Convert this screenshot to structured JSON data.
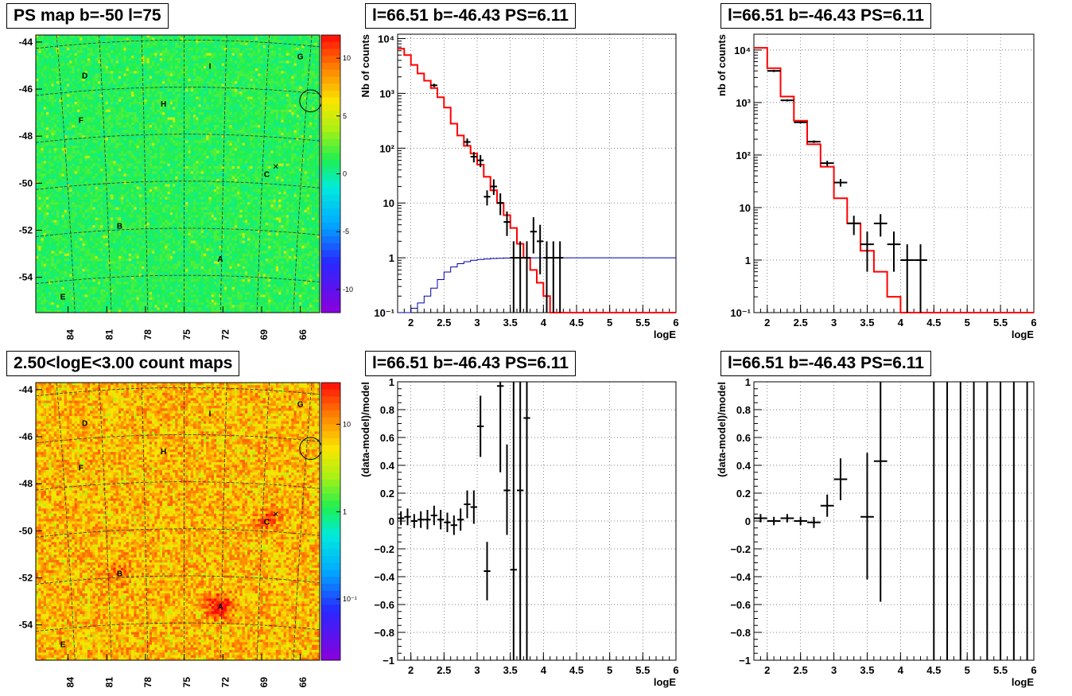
{
  "chart_data": [
    {
      "id": "ps_map",
      "type": "heatmap",
      "title": "PS map b=-50 l=75",
      "colormap": "rainbow",
      "dominant_color": "#22ee55",
      "zlim": [
        -12,
        12
      ],
      "z_ticks": [
        "10",
        "5",
        "0",
        "-5",
        "-10"
      ],
      "z_tick_values": [
        10,
        5,
        0,
        -5,
        -10
      ],
      "x_ticks": [
        "84",
        "81",
        "78",
        "75",
        "72",
        "69",
        "66"
      ],
      "x_tick_values": [
        84,
        81,
        78,
        75,
        72,
        69,
        66
      ],
      "xlim": [
        86.5,
        64.5
      ],
      "y_ticks": [
        "-44",
        "-46",
        "-48",
        "-50",
        "-52",
        "-54"
      ],
      "y_tick_values": [
        -44,
        -46,
        -48,
        -50,
        -52,
        -54
      ],
      "ylim": [
        -55.5,
        -43.7
      ],
      "sources": [
        {
          "label": "A",
          "l": 72.2,
          "b": -53.2
        },
        {
          "label": "B",
          "l": 80.0,
          "b": -51.8
        },
        {
          "label": "C",
          "l": 68.6,
          "b": -49.6
        },
        {
          "label": "D",
          "l": 82.7,
          "b": -45.4
        },
        {
          "label": "E",
          "l": 84.4,
          "b": -54.8
        },
        {
          "label": "F",
          "l": 83.0,
          "b": -47.3
        },
        {
          "label": "G",
          "l": 66.0,
          "b": -44.6
        },
        {
          "label": "H",
          "l": 76.6,
          "b": -46.6
        },
        {
          "label": "I",
          "l": 73.0,
          "b": -45.0
        }
      ],
      "circle": {
        "l": 65.2,
        "b": -46.5,
        "r": 0.85
      },
      "cross": {
        "l": 67.9,
        "b": -49.3
      }
    },
    {
      "id": "count_map",
      "type": "heatmap",
      "title": "2.50<logE<3.00 count maps",
      "colormap": "rainbow-log",
      "dominant_color": "#f08020",
      "z_ticks": [
        "10",
        "1",
        "10⁻¹"
      ],
      "z_tick_values": [
        10,
        1,
        0.1
      ],
      "zlim": [
        0.02,
        30
      ],
      "x_ticks": [
        "84",
        "81",
        "78",
        "75",
        "72",
        "69",
        "66"
      ],
      "x_tick_values": [
        84,
        81,
        78,
        75,
        72,
        69,
        66
      ],
      "xlim": [
        86.5,
        64.5
      ],
      "y_ticks": [
        "-44",
        "-46",
        "-48",
        "-50",
        "-52",
        "-54"
      ],
      "y_tick_values": [
        -44,
        -46,
        -48,
        -50,
        -52,
        -54
      ],
      "ylim": [
        -55.5,
        -43.7
      ],
      "sources": [
        {
          "label": "A",
          "l": 72.2,
          "b": -53.2
        },
        {
          "label": "B",
          "l": 80.0,
          "b": -51.8
        },
        {
          "label": "C",
          "l": 68.6,
          "b": -49.6
        },
        {
          "label": "D",
          "l": 82.7,
          "b": -45.4
        },
        {
          "label": "E",
          "l": 84.4,
          "b": -54.8
        },
        {
          "label": "F",
          "l": 83.0,
          "b": -47.3
        },
        {
          "label": "G",
          "l": 66.0,
          "b": -44.6
        },
        {
          "label": "H",
          "l": 76.6,
          "b": -46.6
        },
        {
          "label": "I",
          "l": 73.0,
          "b": -45.0
        }
      ],
      "circle": {
        "l": 65.2,
        "b": -46.5,
        "r": 0.85
      },
      "cross": {
        "l": 67.9,
        "b": -49.3
      },
      "hotspots": [
        {
          "l": 72.2,
          "b": -53.2,
          "amp": 6
        },
        {
          "l": 68.6,
          "b": -49.5,
          "amp": 3
        },
        {
          "l": 80.0,
          "b": -51.8,
          "amp": 2
        }
      ]
    },
    {
      "id": "spectrum_left",
      "type": "line",
      "title": "l=66.51 b=-46.43 PS=6.11",
      "xlabel": "logE",
      "ylabel": "Nb of counts",
      "yscale": "log",
      "xlim": [
        1.8,
        6.0
      ],
      "ylim": [
        0.1,
        12000
      ],
      "x_ticks": [
        "2",
        "2.5",
        "3",
        "3.5",
        "4",
        "4.5",
        "5",
        "5.5",
        "6"
      ],
      "x_tick_values": [
        2,
        2.5,
        3,
        3.5,
        4,
        4.5,
        5,
        5.5,
        6
      ],
      "y_ticks": [
        "10⁻¹",
        "1",
        "10",
        "10²",
        "10³",
        "10⁴"
      ],
      "y_tick_values": [
        0.1,
        1,
        10,
        100,
        1000,
        10000
      ],
      "series": [
        {
          "style": "step",
          "color": "#ff0000",
          "edges": [
            1.8,
            1.9,
            2.0,
            2.1,
            2.2,
            2.3,
            2.4,
            2.5,
            2.6,
            2.7,
            2.8,
            2.9,
            3.0,
            3.1,
            3.2,
            3.3,
            3.4,
            3.5,
            3.6,
            3.7,
            3.8,
            3.9,
            4.0,
            4.1,
            6.0
          ],
          "values": [
            6500,
            5000,
            3300,
            2300,
            1700,
            1250,
            850,
            550,
            280,
            170,
            110,
            80,
            50,
            30,
            17,
            10,
            6,
            3.5,
            1.8,
            1.0,
            0.6,
            0.35,
            0.2,
            0.1
          ]
        },
        {
          "style": "step",
          "color": "#0000aa",
          "edges": [
            1.8,
            2.0,
            2.1,
            2.2,
            2.3,
            2.4,
            2.5,
            2.6,
            2.7,
            2.8,
            2.9,
            3.0,
            3.1,
            3.2,
            3.3,
            3.4,
            3.5,
            3.6,
            3.7,
            3.8,
            3.9,
            4.0,
            6.0
          ],
          "values": [
            0.1,
            0.12,
            0.15,
            0.2,
            0.28,
            0.4,
            0.55,
            0.68,
            0.78,
            0.85,
            0.9,
            0.93,
            0.95,
            0.97,
            0.98,
            0.99,
            1.0,
            1.0,
            1.0,
            1.0,
            1.0,
            1.0
          ]
        },
        {
          "style": "errorbar",
          "color": "#000000",
          "x": [
            2.35,
            2.85,
            2.95,
            3.05,
            3.15,
            3.25,
            3.35,
            3.45,
            3.55,
            3.65,
            3.75,
            3.85,
            3.95,
            4.05,
            4.15,
            4.25
          ],
          "xerr": 0.05,
          "y": [
            1400,
            130,
            70,
            60,
            13,
            20,
            10,
            4.5,
            1,
            1,
            1,
            3,
            2,
            1,
            1,
            1
          ],
          "ylo": [
            1300,
            110,
            55,
            45,
            9,
            14,
            6,
            2.5,
            0.1,
            0.1,
            0.1,
            1.2,
            0.5,
            0.1,
            0.1,
            0.1
          ],
          "yhi": [
            1500,
            150,
            85,
            75,
            17,
            27,
            15,
            7,
            2,
            2,
            2,
            5.5,
            4,
            2,
            2,
            2
          ]
        }
      ]
    },
    {
      "id": "spectrum_right",
      "type": "line",
      "title": "l=66.51 b=-46.43 PS=6.11",
      "xlabel": "logE",
      "ylabel": "nb of counts",
      "yscale": "log",
      "xlim": [
        1.8,
        6.0
      ],
      "ylim": [
        0.1,
        20000
      ],
      "x_ticks": [
        "2",
        "2.5",
        "3",
        "3.5",
        "4",
        "4.5",
        "5",
        "5.5",
        "6"
      ],
      "x_tick_values": [
        2,
        2.5,
        3,
        3.5,
        4,
        4.5,
        5,
        5.5,
        6
      ],
      "y_ticks": [
        "10⁻¹",
        "1",
        "10",
        "10²",
        "10³",
        "10⁴"
      ],
      "y_tick_values": [
        0.1,
        1,
        10,
        100,
        1000,
        10000
      ],
      "series": [
        {
          "style": "step",
          "color": "#ff0000",
          "edges": [
            1.8,
            2.0,
            2.2,
            2.4,
            2.6,
            2.8,
            3.0,
            3.2,
            3.4,
            3.6,
            3.8,
            4.0,
            4.2,
            6.0
          ],
          "values": [
            11000,
            4500,
            1300,
            450,
            160,
            60,
            15,
            5,
            1.5,
            0.6,
            0.2,
            0.1,
            0.1
          ]
        },
        {
          "style": "errorbar",
          "color": "#000000",
          "x": [
            2.1,
            2.3,
            2.5,
            2.7,
            2.9,
            3.1,
            3.3,
            3.5,
            3.7,
            3.9,
            4.1,
            4.3
          ],
          "xerr": 0.1,
          "y": [
            4000,
            1100,
            420,
            180,
            70,
            30,
            5,
            2,
            5,
            2,
            1,
            1
          ],
          "ylo": [
            3800,
            1050,
            400,
            170,
            62,
            25,
            3,
            0.6,
            2.8,
            0.6,
            0.1,
            0.1
          ],
          "yhi": [
            4200,
            1150,
            440,
            190,
            78,
            35,
            7,
            3.5,
            7.5,
            3.5,
            2,
            2
          ]
        }
      ]
    },
    {
      "id": "residual_left",
      "type": "scatter",
      "title": "l=66.51 b=-46.43 PS=6.11",
      "xlabel": "logE",
      "ylabel": "(data-model)/model",
      "xlim": [
        1.8,
        6.0
      ],
      "ylim": [
        -1.0,
        1.0
      ],
      "x_ticks": [
        "2",
        "2.5",
        "3",
        "3.5",
        "4",
        "4.5",
        "5",
        "5.5",
        "6"
      ],
      "x_tick_values": [
        2,
        2.5,
        3,
        3.5,
        4,
        4.5,
        5,
        5.5,
        6
      ],
      "y_ticks": [
        "1",
        "0.8",
        "0.6",
        "0.4",
        "0.2",
        "0",
        "−0.2",
        "−0.4",
        "−0.6",
        "−0.8",
        "−1"
      ],
      "y_tick_values": [
        1,
        0.8,
        0.6,
        0.4,
        0.2,
        0,
        -0.2,
        -0.4,
        -0.6,
        -0.8,
        -1
      ],
      "series": [
        {
          "style": "errorbar",
          "color": "#000000",
          "x": [
            1.85,
            1.95,
            2.05,
            2.15,
            2.25,
            2.35,
            2.45,
            2.55,
            2.65,
            2.75,
            2.85,
            2.95,
            3.05,
            3.15,
            3.35,
            3.45,
            3.55,
            3.65,
            3.75
          ],
          "xerr": 0.05,
          "y": [
            0.02,
            0.03,
            0.0,
            0.01,
            0.01,
            0.04,
            0.01,
            -0.01,
            -0.03,
            0.01,
            0.12,
            0.1,
            0.68,
            -0.36,
            0.97,
            0.22,
            -0.35,
            0.22,
            0.74
          ],
          "ylo": [
            -0.03,
            -0.03,
            -0.05,
            -0.05,
            -0.06,
            -0.03,
            -0.06,
            -0.08,
            -0.1,
            -0.07,
            0.02,
            -0.02,
            0.46,
            -0.57,
            0.35,
            -0.1,
            -1.0,
            -1.0,
            -1.0
          ],
          "yhi": [
            0.07,
            0.09,
            0.05,
            0.07,
            0.08,
            0.11,
            0.08,
            0.06,
            0.04,
            0.09,
            0.22,
            0.22,
            0.9,
            -0.15,
            1.0,
            0.55,
            1.0,
            1.0,
            1.0
          ]
        }
      ]
    },
    {
      "id": "residual_right",
      "type": "scatter",
      "title": "l=66.51 b=-46.43 PS=6.11",
      "xlabel": "logE",
      "ylabel": "(data-model)/model",
      "xlim": [
        1.8,
        6.0
      ],
      "ylim": [
        -1.0,
        1.0
      ],
      "x_ticks": [
        "2",
        "2.5",
        "3",
        "3.5",
        "4",
        "4.5",
        "5",
        "5.5",
        "6"
      ],
      "x_tick_values": [
        2,
        2.5,
        3,
        3.5,
        4,
        4.5,
        5,
        5.5,
        6
      ],
      "y_ticks": [
        "1",
        "0.8",
        "0.6",
        "0.4",
        "0.2",
        "0",
        "−0.2",
        "−0.4",
        "−0.6",
        "−0.8",
        "−1"
      ],
      "y_tick_values": [
        1,
        0.8,
        0.6,
        0.4,
        0.2,
        0,
        -0.2,
        -0.4,
        -0.6,
        -0.8,
        -1
      ],
      "series": [
        {
          "style": "errorbar",
          "color": "#000000",
          "x": [
            1.9,
            2.1,
            2.3,
            2.5,
            2.7,
            2.9,
            3.1,
            3.5,
            3.7,
            4.5,
            4.7,
            4.9,
            5.1,
            5.3,
            5.5,
            5.7,
            5.9
          ],
          "xerr": 0.1,
          "y": [
            0.02,
            0.0,
            0.02,
            0.0,
            -0.01,
            0.11,
            0.3,
            0.03,
            0.43,
            0,
            0,
            0,
            0,
            0,
            0,
            0,
            0
          ],
          "ylo": [
            -0.01,
            -0.03,
            -0.01,
            -0.03,
            -0.05,
            0.03,
            0.15,
            -0.42,
            -0.58,
            -1,
            -1,
            -1,
            -1,
            -1,
            -1,
            -1,
            -1
          ],
          "yhi": [
            0.05,
            0.03,
            0.05,
            0.03,
            0.03,
            0.19,
            0.45,
            0.49,
            1.0,
            1,
            1,
            1,
            1,
            1,
            1,
            1,
            1
          ],
          "hide_marker_from": 4.4
        }
      ]
    }
  ]
}
